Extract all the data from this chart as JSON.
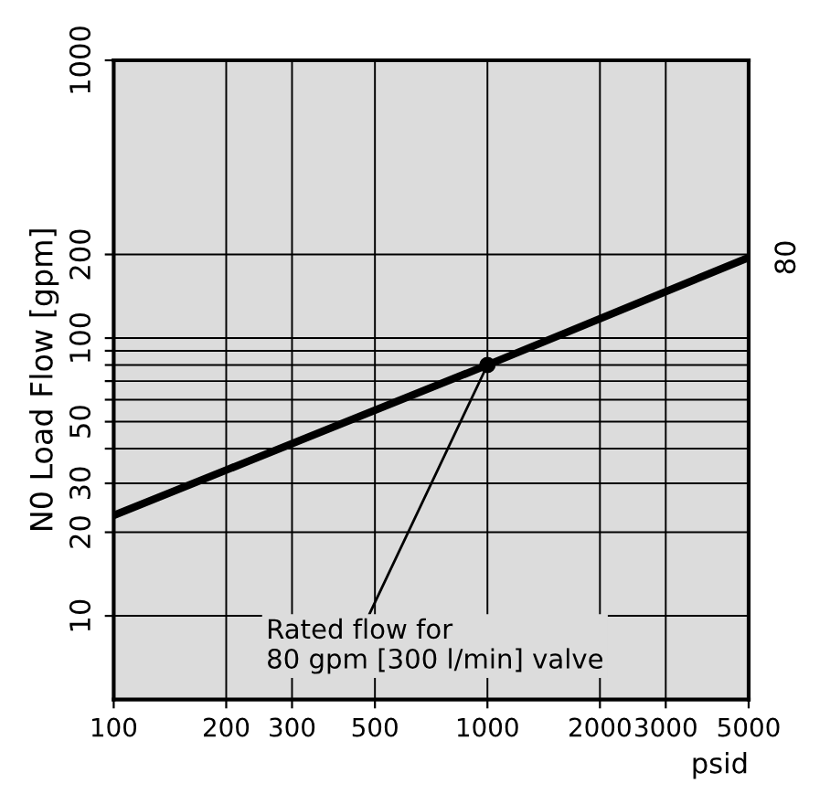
{
  "chart_data": {
    "type": "line",
    "xlabel": "psid",
    "ylabel": "N0 Load Flow [gpm]",
    "log": "xy",
    "xlim": [
      100,
      5000
    ],
    "ylim": [
      5,
      1000
    ],
    "xticks": [
      100,
      200,
      300,
      500,
      1000,
      2000,
      3000,
      5000
    ],
    "yticks": [
      10,
      20,
      30,
      {
        "value": 40,
        "label": null
      },
      50,
      {
        "value": 60,
        "label": null
      },
      {
        "value": 70,
        "label": null
      },
      {
        "value": 80,
        "label": null
      },
      {
        "value": 90,
        "label": null
      },
      100,
      200,
      1000
    ],
    "grid": true,
    "marker": "none",
    "line_style": "solid",
    "series": [
      {
        "name": "80",
        "color": "#000000",
        "x": [
          100,
          1000,
          5000
        ],
        "values": [
          23,
          80,
          195
        ]
      },
      {
        "type": "scatter",
        "marker": "circle",
        "color": "#000000",
        "x": [
          1000
        ],
        "values": [
          80
        ]
      }
    ],
    "annotations": [
      {
        "text": "Rated flow for\n80 gpm [300 l/min] valve",
        "x": 1000,
        "y": 80
      }
    ]
  }
}
